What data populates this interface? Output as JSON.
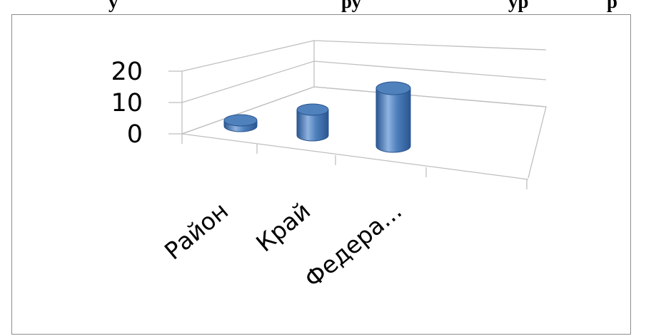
{
  "header_fragments": [
    "у",
    "ру",
    "ур",
    "р"
  ],
  "chart_data": {
    "type": "bar",
    "style": "3d-cylinder",
    "categories": [
      "Район",
      "Край",
      "Федера..."
    ],
    "values": [
      1,
      7,
      17
    ],
    "ylim": [
      0,
      20
    ],
    "yticks": [
      "0",
      "10",
      "20"
    ],
    "grid": true,
    "bar_color": "#4f81bd",
    "bar_color_dark": "#2a5590",
    "bar_color_light": "#8fb3e0",
    "grid_color": "#bfbfbf"
  }
}
